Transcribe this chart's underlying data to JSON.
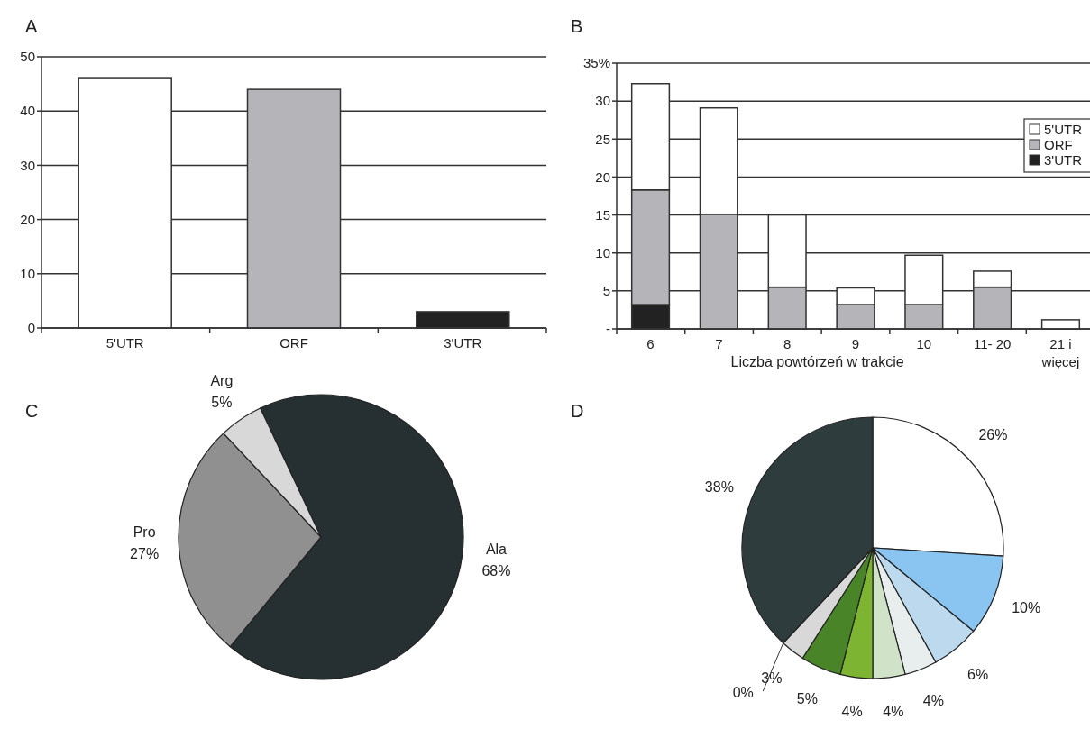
{
  "chart_data": [
    {
      "type": "bar",
      "title": "A",
      "categories": [
        "5'UTR",
        "ORF",
        "3'UTR"
      ],
      "values": [
        46,
        44,
        3
      ],
      "colors": [
        "#ffffff",
        "#b4b4b9",
        "#222222"
      ],
      "ylim": [
        0,
        50
      ],
      "yticks": [
        0,
        10,
        20,
        30,
        40,
        50
      ],
      "grid": "y",
      "legend": false
    },
    {
      "type": "bar",
      "title": "B",
      "xlabel": "Liczba powtórzeń w trakcie",
      "categories": [
        "6",
        "7",
        "8",
        "9",
        "10",
        "11- 20",
        "21 i więcej"
      ],
      "stacked": true,
      "series": [
        {
          "name": "3'UTR",
          "color": "#222222",
          "values": [
            3.2,
            0,
            0,
            0,
            0,
            0,
            0
          ]
        },
        {
          "name": "ORF",
          "color": "#b4b4b9",
          "values": [
            15.1,
            15.1,
            5.5,
            3.2,
            3.2,
            5.5,
            0
          ]
        },
        {
          "name": "5'UTR",
          "color": "#ffffff",
          "values": [
            14,
            14,
            9.5,
            2.2,
            6.5,
            2.1,
            1.2
          ]
        }
      ],
      "ylim": [
        0,
        35
      ],
      "yticks": [
        {
          "value": 0,
          "label": "-"
        },
        5,
        10,
        15,
        20,
        25,
        30,
        {
          "value": 35,
          "label": "35%"
        }
      ],
      "grid": "y",
      "legend": "right"
    },
    {
      "type": "pie",
      "title": "C",
      "categories": [
        "Ala",
        "Pro",
        "Arg"
      ],
      "values": [
        68,
        27,
        5
      ],
      "colors": [
        "#263033",
        "#909090",
        "#d8d8d8"
      ],
      "value_labels": [
        "68%",
        "27%",
        "5%"
      ]
    },
    {
      "type": "pie",
      "title": "D",
      "categories": [
        null,
        null,
        null,
        null,
        null,
        null,
        null,
        null,
        null,
        null
      ],
      "values": [
        26,
        10,
        6,
        4,
        4,
        4,
        5,
        3,
        0,
        38
      ],
      "colors": [
        "#ffffff",
        "#8ac4f0",
        "#bcd9ee",
        "#e8eeee",
        "#d0e2c8",
        "#7db533",
        "#4a8428",
        "#d8d8d8",
        "#bbbbbb",
        "#2f3c3e"
      ],
      "value_labels": [
        "26%",
        "10%",
        "6%",
        "4%",
        "4%",
        "4%",
        "5%",
        "3%",
        "0%",
        "38%"
      ]
    }
  ]
}
